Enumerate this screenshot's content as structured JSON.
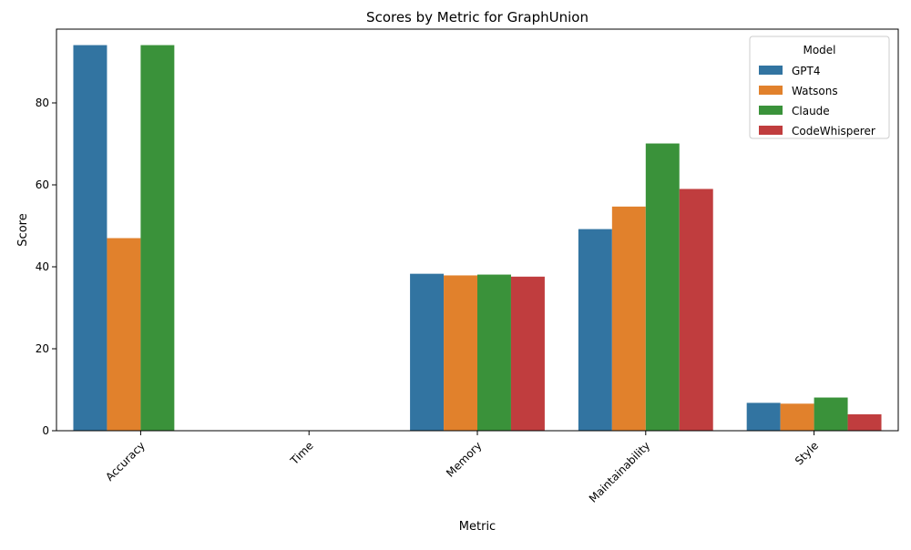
{
  "chart_data": {
    "type": "bar",
    "title": "Scores by Metric for GraphUnion",
    "xlabel": "Metric",
    "ylabel": "Score",
    "categories": [
      "Accuracy",
      "Time",
      "Memory",
      "Maintainability",
      "Style"
    ],
    "ylim": [
      0,
      98
    ],
    "yticks": [
      0,
      20,
      40,
      60,
      80
    ],
    "grid": false,
    "legend": {
      "title": "Model",
      "position": "top-right"
    },
    "series": [
      {
        "name": "GPT4",
        "color": "#3274a1",
        "values": [
          94.1,
          0,
          38.3,
          49.2,
          6.8
        ]
      },
      {
        "name": "Watsons",
        "color": "#e1812c",
        "values": [
          47.0,
          0,
          37.9,
          54.7,
          6.6
        ]
      },
      {
        "name": "Claude",
        "color": "#3a923a",
        "values": [
          94.1,
          0,
          38.1,
          70.1,
          8.1
        ]
      },
      {
        "name": "CodeWhisperer",
        "color": "#c03d3e",
        "values": [
          0,
          0,
          37.6,
          59.0,
          4.0
        ]
      }
    ]
  }
}
